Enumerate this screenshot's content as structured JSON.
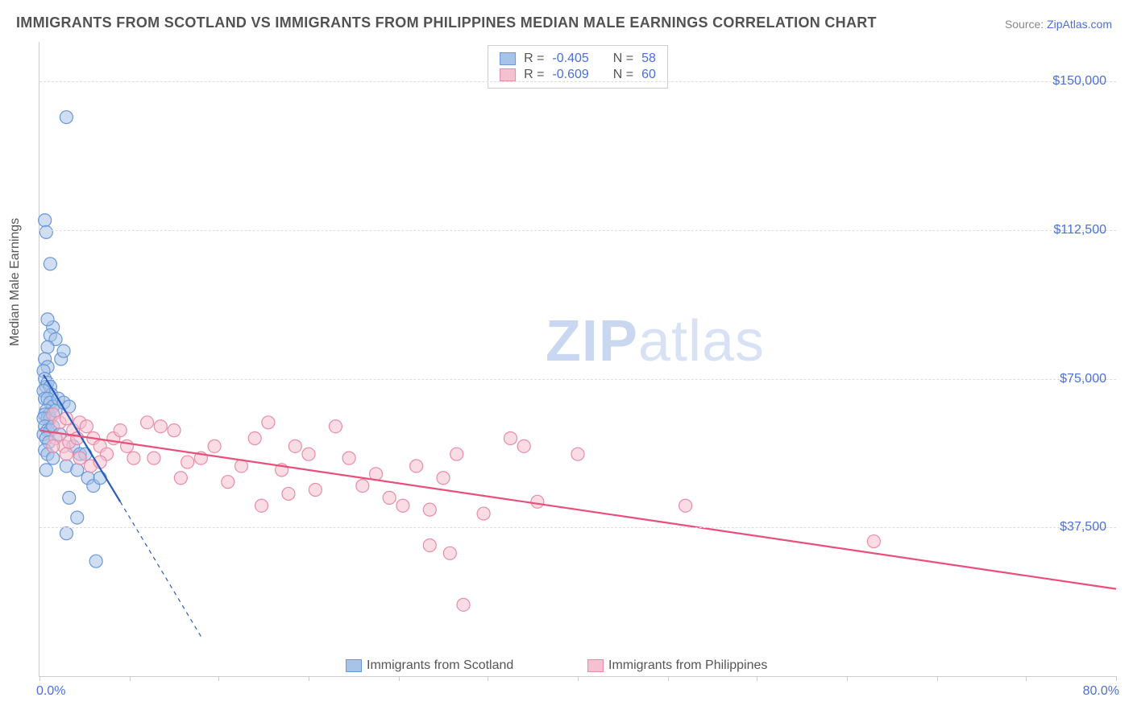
{
  "title": "IMMIGRANTS FROM SCOTLAND VS IMMIGRANTS FROM PHILIPPINES MEDIAN MALE EARNINGS CORRELATION CHART",
  "source_label": "Source: ",
  "source_value": "ZipAtlas.com",
  "y_axis_label": "Median Male Earnings",
  "watermark_zip": "ZIP",
  "watermark_atlas": "atlas",
  "chart": {
    "type": "scatter",
    "xlim": [
      0,
      80
    ],
    "ylim": [
      0,
      160000
    ],
    "x_tick_positions": [
      0,
      6.7,
      13.3,
      20,
      26.7,
      33.3,
      40,
      46.7,
      53.3,
      60,
      66.7,
      73.3,
      80
    ],
    "x_labels": {
      "start": "0.0%",
      "end": "80.0%"
    },
    "y_gridlines": [
      37500,
      75000,
      112500,
      150000
    ],
    "y_tick_labels": [
      "$37,500",
      "$75,000",
      "$112,500",
      "$150,000"
    ],
    "background_color": "#ffffff",
    "grid_color": "#dddddd",
    "axis_color": "#cccccc",
    "label_fontsize": 16,
    "title_fontsize": 18,
    "marker_radius": 8,
    "series": [
      {
        "name": "Immigrants from Scotland",
        "fill": "#a8c3e8",
        "stroke": "#6a98d8",
        "fill_opacity": 0.55,
        "line_color": "#2a5db8",
        "line_width": 2.2,
        "R": -0.405,
        "N": 58,
        "trend": {
          "x1": 0.3,
          "y1": 76000,
          "x2": 6.0,
          "y2": 44000,
          "dash_extend_x": 12.0,
          "dash_extend_y": 10000
        },
        "points": [
          [
            0.4,
            115000
          ],
          [
            0.5,
            112000
          ],
          [
            2.0,
            141000
          ],
          [
            0.8,
            104000
          ],
          [
            1.0,
            88000
          ],
          [
            0.6,
            90000
          ],
          [
            0.8,
            86000
          ],
          [
            1.2,
            85000
          ],
          [
            0.6,
            83000
          ],
          [
            0.4,
            80000
          ],
          [
            0.6,
            78000
          ],
          [
            1.6,
            80000
          ],
          [
            1.8,
            82000
          ],
          [
            0.3,
            77000
          ],
          [
            0.4,
            75000
          ],
          [
            0.5,
            73000
          ],
          [
            0.6,
            74000
          ],
          [
            0.8,
            73000
          ],
          [
            0.9,
            71000
          ],
          [
            0.3,
            72000
          ],
          [
            0.4,
            70000
          ],
          [
            0.6,
            70000
          ],
          [
            0.8,
            69000
          ],
          [
            1.0,
            68000
          ],
          [
            0.5,
            67000
          ],
          [
            0.7,
            66000
          ],
          [
            0.4,
            66000
          ],
          [
            0.6,
            65000
          ],
          [
            0.8,
            65000
          ],
          [
            0.3,
            65000
          ],
          [
            1.2,
            67000
          ],
          [
            1.4,
            70000
          ],
          [
            1.8,
            69000
          ],
          [
            2.2,
            68000
          ],
          [
            0.4,
            63000
          ],
          [
            0.6,
            62000
          ],
          [
            0.8,
            62000
          ],
          [
            1.0,
            63000
          ],
          [
            0.3,
            61000
          ],
          [
            0.5,
            60000
          ],
          [
            0.7,
            59000
          ],
          [
            1.5,
            61000
          ],
          [
            0.4,
            57000
          ],
          [
            0.6,
            56000
          ],
          [
            2.5,
            58000
          ],
          [
            3.0,
            56000
          ],
          [
            1.0,
            55000
          ],
          [
            2.0,
            53000
          ],
          [
            2.8,
            52000
          ],
          [
            3.4,
            56000
          ],
          [
            0.5,
            52000
          ],
          [
            3.6,
            50000
          ],
          [
            4.0,
            48000
          ],
          [
            4.5,
            50000
          ],
          [
            2.2,
            45000
          ],
          [
            2.8,
            40000
          ],
          [
            2.0,
            36000
          ],
          [
            4.2,
            29000
          ]
        ]
      },
      {
        "name": "Immigrants from Philippines",
        "fill": "#f5c0cf",
        "stroke": "#e88ca8",
        "fill_opacity": 0.55,
        "line_color": "#e8507a",
        "line_width": 2.2,
        "R": -0.609,
        "N": 60,
        "trend": {
          "x1": 0.0,
          "y1": 62000,
          "x2": 80.0,
          "y2": 22000
        },
        "points": [
          [
            1.0,
            66000
          ],
          [
            1.5,
            64000
          ],
          [
            2.0,
            65000
          ],
          [
            2.5,
            62000
          ],
          [
            3.0,
            64000
          ],
          [
            1.2,
            60000
          ],
          [
            1.8,
            58000
          ],
          [
            2.2,
            59000
          ],
          [
            3.5,
            63000
          ],
          [
            4.0,
            60000
          ],
          [
            2.0,
            56000
          ],
          [
            2.8,
            60000
          ],
          [
            4.5,
            58000
          ],
          [
            5.0,
            56000
          ],
          [
            5.5,
            60000
          ],
          [
            6.0,
            62000
          ],
          [
            3.0,
            55000
          ],
          [
            3.8,
            53000
          ],
          [
            4.5,
            54000
          ],
          [
            6.5,
            58000
          ],
          [
            7.0,
            55000
          ],
          [
            8.0,
            64000
          ],
          [
            9.0,
            63000
          ],
          [
            8.5,
            55000
          ],
          [
            10.0,
            62000
          ],
          [
            11.0,
            54000
          ],
          [
            10.5,
            50000
          ],
          [
            12.0,
            55000
          ],
          [
            13.0,
            58000
          ],
          [
            14.0,
            49000
          ],
          [
            15.0,
            53000
          ],
          [
            16.0,
            60000
          ],
          [
            17.0,
            64000
          ],
          [
            18.0,
            52000
          ],
          [
            19.0,
            58000
          ],
          [
            20.0,
            56000
          ],
          [
            22.0,
            63000
          ],
          [
            20.5,
            47000
          ],
          [
            23.0,
            55000
          ],
          [
            24.0,
            48000
          ],
          [
            25.0,
            51000
          ],
          [
            26.0,
            45000
          ],
          [
            28.0,
            53000
          ],
          [
            27.0,
            43000
          ],
          [
            30.0,
            50000
          ],
          [
            29.0,
            42000
          ],
          [
            31.0,
            56000
          ],
          [
            33.0,
            41000
          ],
          [
            35.0,
            60000
          ],
          [
            36.0,
            58000
          ],
          [
            16.5,
            43000
          ],
          [
            18.5,
            46000
          ],
          [
            37.0,
            44000
          ],
          [
            40.0,
            56000
          ],
          [
            48.0,
            43000
          ],
          [
            29.0,
            33000
          ],
          [
            30.5,
            31000
          ],
          [
            31.5,
            18000
          ],
          [
            62.0,
            34000
          ],
          [
            1.0,
            58000
          ]
        ]
      }
    ]
  },
  "stats_box": {
    "R_label": "R =",
    "N_label": "N ="
  },
  "bottom_legend": {
    "series1": "Immigrants from Scotland",
    "series2": "Immigrants from Philippines"
  }
}
